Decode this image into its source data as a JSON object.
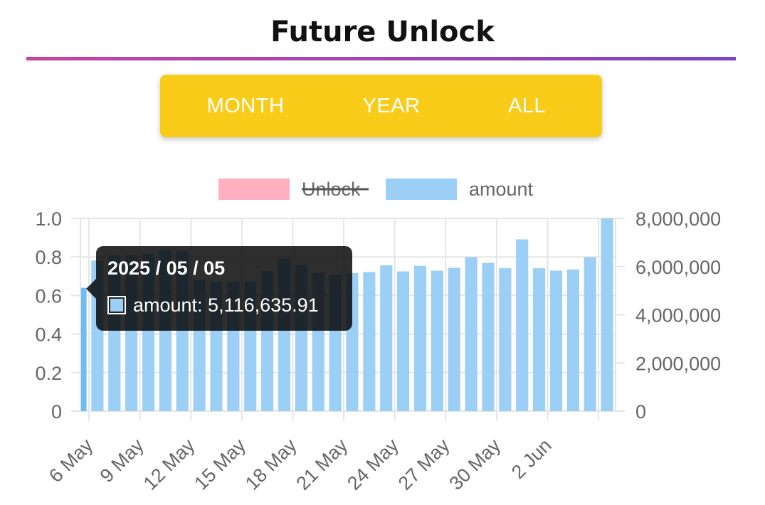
{
  "header": {
    "title": "Future Unlock",
    "bar_gradient": [
      "#c844a0",
      "#7e44c0"
    ]
  },
  "tabs": {
    "items": [
      {
        "label": "MONTH"
      },
      {
        "label": "YEAR"
      },
      {
        "label": "ALL"
      }
    ],
    "background": "#f9cc1a",
    "text_color": "#ffffff"
  },
  "chart_data": {
    "type": "bar",
    "legend": {
      "placement": "top-center",
      "items": [
        {
          "label": "Unlock",
          "color": "#ffb1c1",
          "hidden": true
        },
        {
          "label": "amount",
          "color": "#9ccff5",
          "hidden": false
        }
      ]
    },
    "series": [
      {
        "name": "Unlock",
        "axis": "left",
        "values": []
      },
      {
        "name": "amount",
        "axis": "right",
        "color": "#9ccff5",
        "highlight_color": "#6ebcf2",
        "values": [
          5116635.91,
          6250000,
          6450000,
          6480000,
          6520000,
          6680000,
          6640000,
          5450000,
          5370000,
          5370000,
          5380000,
          5800000,
          6330000,
          6080000,
          5730000,
          5640000,
          5730000,
          5770000,
          6050000,
          5800000,
          6030000,
          5830000,
          5950000,
          6390000,
          6150000,
          5930000,
          7130000,
          5930000,
          5830000,
          5880000,
          6390000,
          8000000
        ]
      }
    ],
    "x_tick_labels": [
      "6 May",
      "9 May",
      "12 May",
      "15 May",
      "18 May",
      "21 May",
      "24 May",
      "27 May",
      "30 May",
      "2 Jun"
    ],
    "y_left": {
      "min": 0,
      "max": 1.0,
      "ticks": [
        "0",
        "0.2",
        "0.4",
        "0.6",
        "0.8",
        "1.0"
      ]
    },
    "y_right": {
      "min": 0,
      "max": 8000000,
      "ticks": [
        "0",
        "2,000,000",
        "4,000,000",
        "6,000,000",
        "8,000,000"
      ]
    },
    "grid": true,
    "grid_color": "#e5e5e5",
    "axis_text_color": "#666666",
    "tooltip": {
      "title": "2025 / 05 / 05",
      "line": "amount: 5,116,635.91",
      "active_index": 0
    }
  }
}
